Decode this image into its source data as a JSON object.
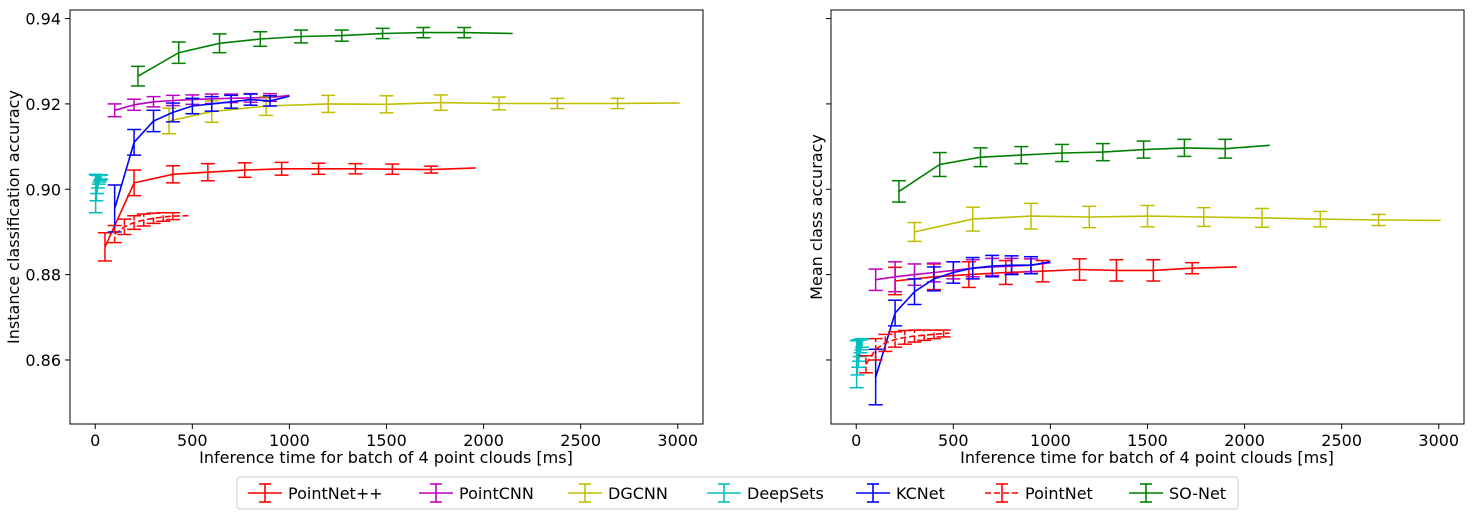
{
  "chart_data": [
    {
      "type": "line",
      "xlabel": "Inference time for batch of 4 point clouds [ms]",
      "ylabel": "Instance classification accuracy",
      "xlim": [
        -130,
        3130
      ],
      "ylim": [
        0.845,
        0.942
      ],
      "xticks": [
        0,
        500,
        1000,
        1500,
        2000,
        2500,
        3000
      ],
      "xtick_labels": [
        "0",
        "500",
        "1000",
        "1500",
        "2000",
        "2500",
        "3000"
      ],
      "yticks": [
        0.86,
        0.88,
        0.9,
        0.92,
        0.94
      ],
      "ytick_labels": [
        "0.86",
        "0.88",
        "0.90",
        "0.92",
        "0.94"
      ],
      "grid": false,
      "series": [
        {
          "name": "PointNet++",
          "color": "#ff0000",
          "dashed": false,
          "points": [
            {
              "x": 50,
              "y": 0.8865,
              "err": 0.0033
            },
            {
              "x": 200,
              "y": 0.9015,
              "err": 0.003
            },
            {
              "x": 400,
              "y": 0.9035,
              "err": 0.002
            },
            {
              "x": 580,
              "y": 0.904,
              "err": 0.002
            },
            {
              "x": 770,
              "y": 0.9045,
              "err": 0.0017
            },
            {
              "x": 960,
              "y": 0.9048,
              "err": 0.0015
            },
            {
              "x": 1150,
              "y": 0.9048,
              "err": 0.0013
            },
            {
              "x": 1340,
              "y": 0.9048,
              "err": 0.0012
            },
            {
              "x": 1530,
              "y": 0.9047,
              "err": 0.0012
            },
            {
              "x": 1730,
              "y": 0.9046,
              "err": 0.0008
            },
            {
              "x": 1960,
              "y": 0.905,
              "err": 0
            }
          ]
        },
        {
          "name": "PointCNN",
          "color": "#bf00bf",
          "dashed": false,
          "points": [
            {
              "x": 100,
              "y": 0.9185,
              "err": 0.0015
            },
            {
              "x": 200,
              "y": 0.9198,
              "err": 0.0013
            },
            {
              "x": 300,
              "y": 0.9205,
              "err": 0.0012
            },
            {
              "x": 400,
              "y": 0.9208,
              "err": 0.0012
            },
            {
              "x": 500,
              "y": 0.921,
              "err": 0.0011
            },
            {
              "x": 600,
              "y": 0.9212,
              "err": 0.0011
            },
            {
              "x": 700,
              "y": 0.9213,
              "err": 0.001
            },
            {
              "x": 800,
              "y": 0.9214,
              "err": 0.001
            },
            {
              "x": 900,
              "y": 0.9215,
              "err": 0.0009
            },
            {
              "x": 1000,
              "y": 0.922,
              "err": 0
            }
          ]
        },
        {
          "name": "DGCNN",
          "color": "#bfbf00",
          "dashed": false,
          "points": [
            {
              "x": 380,
              "y": 0.916,
              "err": 0.003
            },
            {
              "x": 600,
              "y": 0.9182,
              "err": 0.0025
            },
            {
              "x": 880,
              "y": 0.9195,
              "err": 0.0022
            },
            {
              "x": 1200,
              "y": 0.92,
              "err": 0.002
            },
            {
              "x": 1500,
              "y": 0.9199,
              "err": 0.002
            },
            {
              "x": 1780,
              "y": 0.9203,
              "err": 0.0018
            },
            {
              "x": 2080,
              "y": 0.9201,
              "err": 0.0015
            },
            {
              "x": 2380,
              "y": 0.9201,
              "err": 0.0012
            },
            {
              "x": 2690,
              "y": 0.9201,
              "err": 0.0012
            },
            {
              "x": 3010,
              "y": 0.9202,
              "err": 0
            }
          ]
        },
        {
          "name": "DeepSets",
          "color": "#00bfbf",
          "dashed": false,
          "points": [
            {
              "x": 2,
              "y": 0.899,
              "err": 0.0045
            },
            {
              "x": 6,
              "y": 0.9003,
              "err": 0.003
            },
            {
              "x": 10,
              "y": 0.9012,
              "err": 0.0022
            },
            {
              "x": 14,
              "y": 0.9018,
              "err": 0.0015
            },
            {
              "x": 18,
              "y": 0.9022,
              "err": 0.001
            },
            {
              "x": 22,
              "y": 0.9025,
              "err": 0.0008
            },
            {
              "x": 26,
              "y": 0.9027,
              "err": 0.0006
            },
            {
              "x": 30,
              "y": 0.9029,
              "err": 0.0005
            }
          ]
        },
        {
          "name": "KCNet",
          "color": "#0000ff",
          "dashed": false,
          "points": [
            {
              "x": 100,
              "y": 0.8955,
              "err": 0.0055
            },
            {
              "x": 200,
              "y": 0.911,
              "err": 0.003
            },
            {
              "x": 300,
              "y": 0.916,
              "err": 0.0025
            },
            {
              "x": 400,
              "y": 0.918,
              "err": 0.0022
            },
            {
              "x": 500,
              "y": 0.9195,
              "err": 0.0018
            },
            {
              "x": 600,
              "y": 0.92,
              "err": 0.0017
            },
            {
              "x": 700,
              "y": 0.9205,
              "err": 0.0015
            },
            {
              "x": 800,
              "y": 0.921,
              "err": 0.0013
            },
            {
              "x": 900,
              "y": 0.9207,
              "err": 0.0012
            },
            {
              "x": 1000,
              "y": 0.9218,
              "err": 0
            }
          ]
        },
        {
          "name": "PointNet",
          "color": "#ff0000",
          "dashed": true,
          "points": [
            {
              "x": 100,
              "y": 0.8895,
              "err": 0.002
            },
            {
              "x": 150,
              "y": 0.8912,
              "err": 0.0018
            },
            {
              "x": 200,
              "y": 0.8922,
              "err": 0.0016
            },
            {
              "x": 250,
              "y": 0.8928,
              "err": 0.0014
            },
            {
              "x": 300,
              "y": 0.8932,
              "err": 0.0012
            },
            {
              "x": 350,
              "y": 0.8935,
              "err": 0.001
            },
            {
              "x": 400,
              "y": 0.8937,
              "err": 0.0008
            },
            {
              "x": 480,
              "y": 0.8938,
              "err": 0
            }
          ]
        },
        {
          "name": "SO-Net",
          "color": "#008000",
          "dashed": false,
          "points": [
            {
              "x": 220,
              "y": 0.9265,
              "err": 0.0023
            },
            {
              "x": 430,
              "y": 0.932,
              "err": 0.0025
            },
            {
              "x": 640,
              "y": 0.9342,
              "err": 0.0022
            },
            {
              "x": 850,
              "y": 0.9352,
              "err": 0.0017
            },
            {
              "x": 1060,
              "y": 0.9358,
              "err": 0.0015
            },
            {
              "x": 1270,
              "y": 0.936,
              "err": 0.0013
            },
            {
              "x": 1480,
              "y": 0.9365,
              "err": 0.0012
            },
            {
              "x": 1690,
              "y": 0.9367,
              "err": 0.0012
            },
            {
              "x": 1900,
              "y": 0.9367,
              "err": 0.0012
            },
            {
              "x": 2150,
              "y": 0.9365,
              "err": 0
            }
          ]
        }
      ]
    },
    {
      "type": "line",
      "xlabel": "Inference time for batch of 4 point clouds [ms]",
      "ylabel": "Mean class accuracy",
      "xlim": [
        -130,
        3130
      ],
      "ylim": [
        0.845,
        0.942
      ],
      "xticks": [
        0,
        500,
        1000,
        1500,
        2000,
        2500,
        3000
      ],
      "xtick_labels": [
        "0",
        "500",
        "1000",
        "1500",
        "2000",
        "2500",
        "3000"
      ],
      "yticks": [
        0.86,
        0.88,
        0.9,
        0.92,
        0.94
      ],
      "ytick_labels": [],
      "grid": false,
      "series": [
        {
          "name": "PointNet++",
          "color": "#ff0000",
          "dashed": false,
          "points": [
            {
              "x": 200,
              "y": 0.8785,
              "err": 0.0032
            },
            {
              "x": 400,
              "y": 0.8795,
              "err": 0.003
            },
            {
              "x": 580,
              "y": 0.88,
              "err": 0.003
            },
            {
              "x": 770,
              "y": 0.8805,
              "err": 0.0028
            },
            {
              "x": 960,
              "y": 0.8808,
              "err": 0.0025
            },
            {
              "x": 1150,
              "y": 0.8812,
              "err": 0.0025
            },
            {
              "x": 1340,
              "y": 0.881,
              "err": 0.0025
            },
            {
              "x": 1530,
              "y": 0.881,
              "err": 0.0025
            },
            {
              "x": 1730,
              "y": 0.8815,
              "err": 0.0013
            },
            {
              "x": 1960,
              "y": 0.8818,
              "err": 0
            }
          ]
        },
        {
          "name": "PointCNN",
          "color": "#bf00bf",
          "dashed": false,
          "points": [
            {
              "x": 100,
              "y": 0.8788,
              "err": 0.0025
            },
            {
              "x": 200,
              "y": 0.8795,
              "err": 0.0035
            },
            {
              "x": 300,
              "y": 0.88,
              "err": 0.0025
            },
            {
              "x": 400,
              "y": 0.8805,
              "err": 0.0022
            },
            {
              "x": 500,
              "y": 0.881,
              "err": 0.002
            },
            {
              "x": 600,
              "y": 0.8815,
              "err": 0.002
            },
            {
              "x": 700,
              "y": 0.8818,
              "err": 0.002
            },
            {
              "x": 800,
              "y": 0.882,
              "err": 0.0018
            },
            {
              "x": 900,
              "y": 0.8822,
              "err": 0.0015
            },
            {
              "x": 1000,
              "y": 0.8828,
              "err": 0
            }
          ]
        },
        {
          "name": "DGCNN",
          "color": "#bfbf00",
          "dashed": false,
          "points": [
            {
              "x": 300,
              "y": 0.89,
              "err": 0.0022
            },
            {
              "x": 600,
              "y": 0.893,
              "err": 0.0028
            },
            {
              "x": 900,
              "y": 0.8937,
              "err": 0.003
            },
            {
              "x": 1200,
              "y": 0.8935,
              "err": 0.0025
            },
            {
              "x": 1500,
              "y": 0.8937,
              "err": 0.0025
            },
            {
              "x": 1790,
              "y": 0.8935,
              "err": 0.0022
            },
            {
              "x": 2090,
              "y": 0.8933,
              "err": 0.0022
            },
            {
              "x": 2390,
              "y": 0.893,
              "err": 0.0018
            },
            {
              "x": 2690,
              "y": 0.8928,
              "err": 0.0013
            },
            {
              "x": 3010,
              "y": 0.8927,
              "err": 0
            }
          ]
        },
        {
          "name": "DeepSets",
          "color": "#00bfbf",
          "dashed": false,
          "points": [
            {
              "x": 2,
              "y": 0.859,
              "err": 0.0055
            },
            {
              "x": 6,
              "y": 0.8605,
              "err": 0.004
            },
            {
              "x": 10,
              "y": 0.8615,
              "err": 0.0032
            },
            {
              "x": 14,
              "y": 0.8622,
              "err": 0.0025
            },
            {
              "x": 18,
              "y": 0.8628,
              "err": 0.002
            },
            {
              "x": 22,
              "y": 0.8632,
              "err": 0.0015
            },
            {
              "x": 26,
              "y": 0.8636,
              "err": 0.0012
            },
            {
              "x": 30,
              "y": 0.864,
              "err": 0.001
            }
          ]
        },
        {
          "name": "KCNet",
          "color": "#0000ff",
          "dashed": false,
          "points": [
            {
              "x": 100,
              "y": 0.856,
              "err": 0.0065
            },
            {
              "x": 200,
              "y": 0.871,
              "err": 0.003
            },
            {
              "x": 300,
              "y": 0.876,
              "err": 0.003
            },
            {
              "x": 400,
              "y": 0.879,
              "err": 0.0028
            },
            {
              "x": 500,
              "y": 0.8805,
              "err": 0.0025
            },
            {
              "x": 600,
              "y": 0.8815,
              "err": 0.0025
            },
            {
              "x": 700,
              "y": 0.882,
              "err": 0.0025
            },
            {
              "x": 800,
              "y": 0.8822,
              "err": 0.0022
            },
            {
              "x": 900,
              "y": 0.8822,
              "err": 0.002
            },
            {
              "x": 1000,
              "y": 0.883,
              "err": 0
            }
          ]
        },
        {
          "name": "PointNet",
          "color": "#ff0000",
          "dashed": true,
          "points": [
            {
              "x": 50,
              "y": 0.859,
              "err": 0.002
            },
            {
              "x": 100,
              "y": 0.8625,
              "err": 0.0025
            },
            {
              "x": 150,
              "y": 0.864,
              "err": 0.002
            },
            {
              "x": 200,
              "y": 0.8648,
              "err": 0.0018
            },
            {
              "x": 250,
              "y": 0.8653,
              "err": 0.0016
            },
            {
              "x": 300,
              "y": 0.8656,
              "err": 0.0014
            },
            {
              "x": 350,
              "y": 0.8658,
              "err": 0.0012
            },
            {
              "x": 400,
              "y": 0.866,
              "err": 0.001
            },
            {
              "x": 450,
              "y": 0.8662,
              "err": 0.0008
            },
            {
              "x": 480,
              "y": 0.8663,
              "err": 0
            }
          ]
        },
        {
          "name": "SO-Net",
          "color": "#008000",
          "dashed": false,
          "points": [
            {
              "x": 220,
              "y": 0.8995,
              "err": 0.0025
            },
            {
              "x": 430,
              "y": 0.9058,
              "err": 0.0028
            },
            {
              "x": 640,
              "y": 0.9075,
              "err": 0.0022
            },
            {
              "x": 850,
              "y": 0.908,
              "err": 0.002
            },
            {
              "x": 1060,
              "y": 0.9085,
              "err": 0.002
            },
            {
              "x": 1270,
              "y": 0.9087,
              "err": 0.002
            },
            {
              "x": 1480,
              "y": 0.9093,
              "err": 0.002
            },
            {
              "x": 1690,
              "y": 0.9097,
              "err": 0.002
            },
            {
              "x": 1900,
              "y": 0.9095,
              "err": 0.0022
            },
            {
              "x": 2130,
              "y": 0.9103,
              "err": 0
            }
          ]
        }
      ]
    }
  ],
  "legend": {
    "placement": "bottom-center",
    "items": [
      {
        "label": "PointNet++",
        "color": "#ff0000",
        "dashed": false
      },
      {
        "label": "PointCNN",
        "color": "#bf00bf",
        "dashed": false
      },
      {
        "label": "DGCNN",
        "color": "#bfbf00",
        "dashed": false
      },
      {
        "label": "DeepSets",
        "color": "#00bfbf",
        "dashed": false
      },
      {
        "label": "KCNet",
        "color": "#0000ff",
        "dashed": false
      },
      {
        "label": "PointNet",
        "color": "#ff0000",
        "dashed": true
      },
      {
        "label": "SO-Net",
        "color": "#008000",
        "dashed": false
      }
    ]
  }
}
